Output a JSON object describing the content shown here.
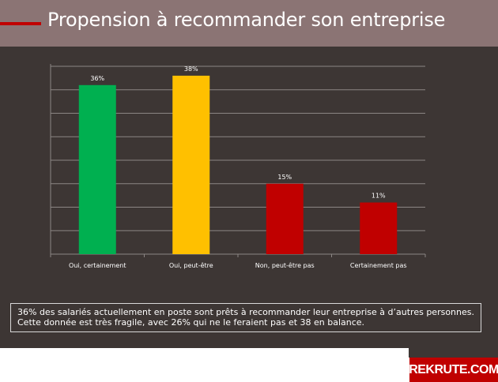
{
  "header": {
    "title": "Propension à recommander son entreprise"
  },
  "chart_data": {
    "type": "bar",
    "categories": [
      "Oui, certainement",
      "Oui, peut-être",
      "Non, peut-être pas",
      "Certainement pas"
    ],
    "values": [
      36,
      38,
      15,
      11
    ],
    "data_labels": [
      "36%",
      "38%",
      "15%",
      "11%"
    ],
    "colors": [
      "#00b050",
      "#ffc000",
      "#c00000",
      "#c00000"
    ],
    "ylim": [
      0,
      40
    ],
    "gridlines": 8,
    "grid": true,
    "legend": "none"
  },
  "caption": {
    "text": "36% des salariés actuellement en poste sont prêts à recommander leur entreprise à d’autres personnes. Cette donnée est très fragile, avec 26% qui ne le feraient pas et 38 en balance."
  },
  "logo": {
    "text": "REKRUTE.COM"
  },
  "colors": {
    "header_bg": "#8b7474",
    "panel_bg": "#3d3634",
    "accent": "#c00000"
  }
}
